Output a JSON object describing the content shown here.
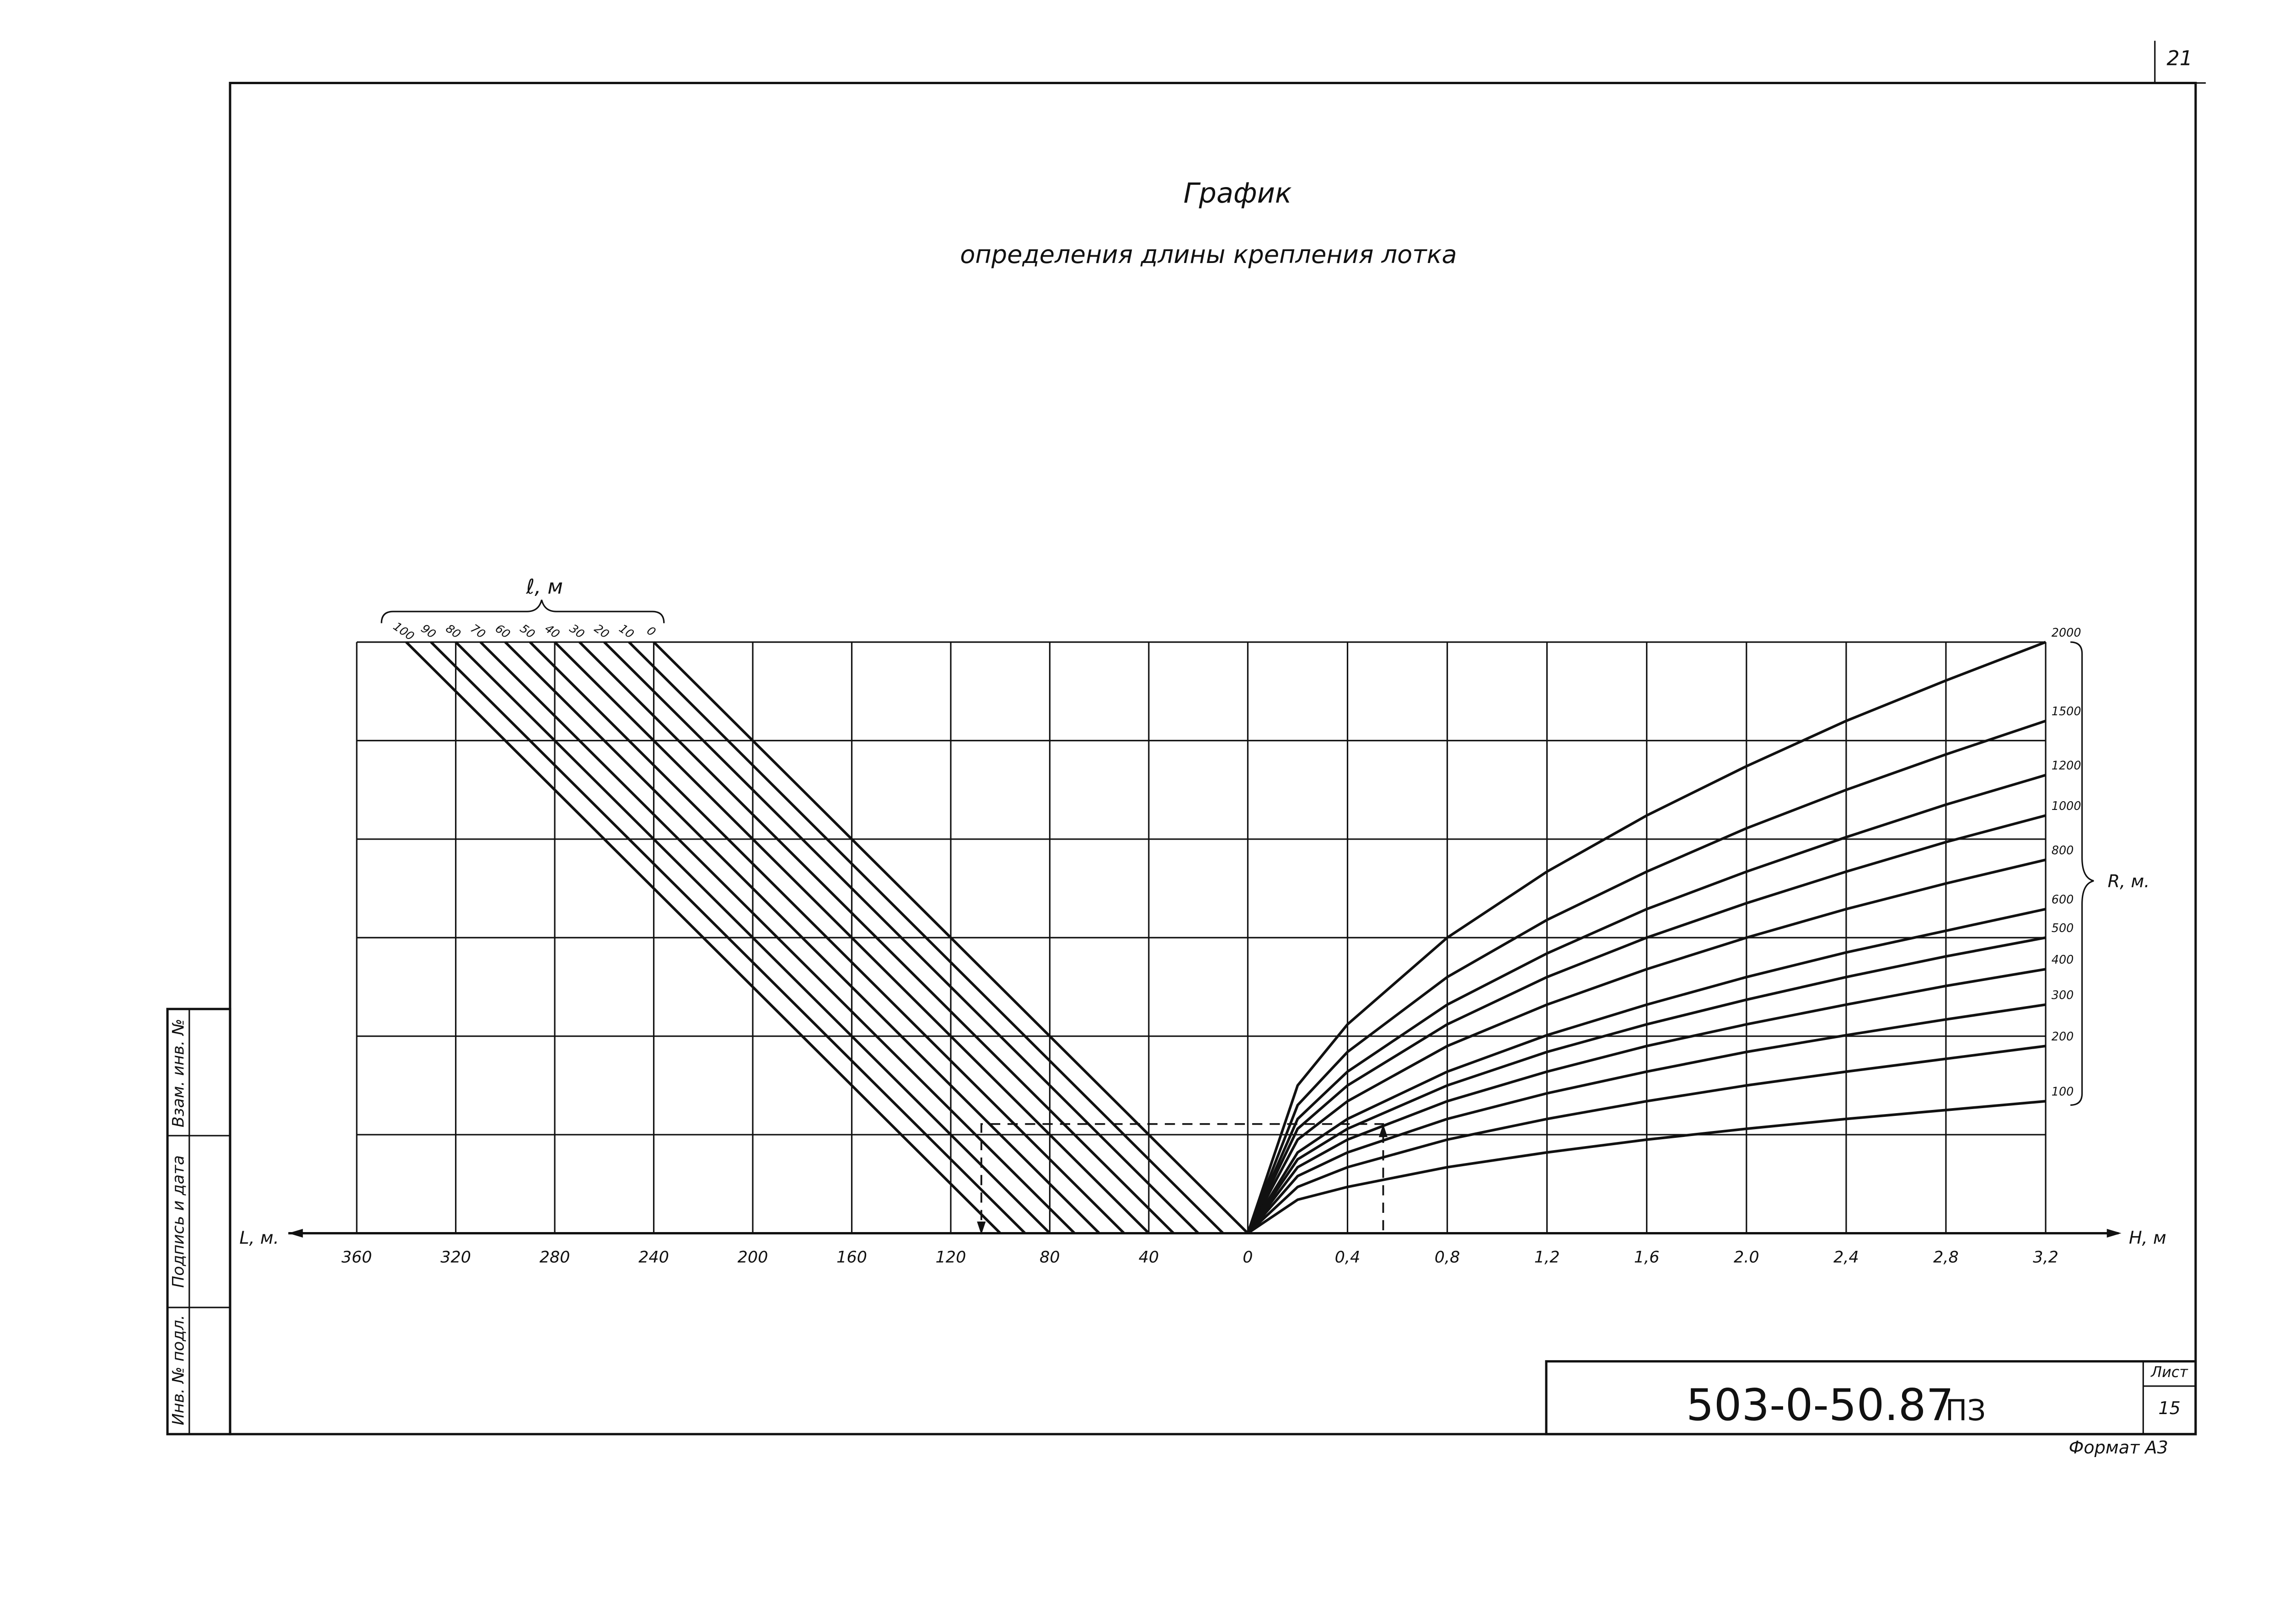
{
  "page_number": "21",
  "header": {
    "title": "График",
    "subtitle": "определения длины крепления лотка"
  },
  "chart_data": [
    {
      "type": "line",
      "x_label": "L, м.",
      "legend_title": "ℓ, м",
      "color": "#111",
      "xlim": [
        360,
        0
      ],
      "xticks": [
        360,
        320,
        280,
        240,
        200,
        160,
        120,
        80,
        40
      ],
      "ylim": [
        0,
        6
      ],
      "yticks": [
        0,
        1,
        2,
        3,
        4,
        5,
        6
      ],
      "grid": true,
      "series": [
        {
          "name": "100",
          "x": [
            100,
            340
          ],
          "values": [
            0,
            6
          ]
        },
        {
          "name": "90",
          "x": [
            90,
            330
          ],
          "values": [
            0,
            6
          ]
        },
        {
          "name": "80",
          "x": [
            80,
            320
          ],
          "values": [
            0,
            6
          ]
        },
        {
          "name": "70",
          "x": [
            70,
            310
          ],
          "values": [
            0,
            6
          ]
        },
        {
          "name": "60",
          "x": [
            60,
            300
          ],
          "values": [
            0,
            6
          ]
        },
        {
          "name": "50",
          "x": [
            50,
            290
          ],
          "values": [
            0,
            6
          ]
        },
        {
          "name": "40",
          "x": [
            40,
            280
          ],
          "values": [
            0,
            6
          ]
        },
        {
          "name": "30",
          "x": [
            30,
            270
          ],
          "values": [
            0,
            6
          ]
        },
        {
          "name": "20",
          "x": [
            20,
            260
          ],
          "values": [
            0,
            6
          ]
        },
        {
          "name": "10",
          "x": [
            10,
            250
          ],
          "values": [
            0,
            6
          ]
        },
        {
          "name": "0",
          "x": [
            0,
            240
          ],
          "values": [
            0,
            6
          ]
        }
      ]
    },
    {
      "type": "line",
      "x_label": "H, м",
      "legend_title": "R, м.",
      "color": "#111",
      "xlim": [
        0,
        3.2
      ],
      "xticks": [
        0,
        {
          "value": 0.4,
          "label": "0,4"
        },
        {
          "value": 0.8,
          "label": "0,8"
        },
        {
          "value": 1.2,
          "label": "1,2"
        },
        {
          "value": 1.6,
          "label": "1,6"
        },
        {
          "value": 2,
          "label": "2.0"
        },
        {
          "value": 2.4,
          "label": "2,4"
        },
        {
          "value": 2.8,
          "label": "2,8"
        },
        {
          "value": 3.2,
          "label": "3,2"
        }
      ],
      "ylim": [
        0,
        6
      ],
      "yticks": [
        0,
        1,
        2,
        3,
        4,
        5,
        6
      ],
      "grid": true,
      "x": [
        0,
        0.2,
        0.4,
        0.8,
        1.2,
        1.6,
        2.0,
        2.4,
        2.8,
        3.2
      ],
      "series": [
        {
          "name": "100",
          "values": [
            0,
            0.34,
            0.47,
            0.67,
            0.82,
            0.95,
            1.06,
            1.16,
            1.25,
            1.34
          ]
        },
        {
          "name": "200",
          "values": [
            0,
            0.47,
            0.67,
            0.95,
            1.16,
            1.34,
            1.5,
            1.64,
            1.77,
            1.9
          ]
        },
        {
          "name": "300",
          "values": [
            0,
            0.58,
            0.82,
            1.16,
            1.42,
            1.64,
            1.84,
            2.01,
            2.17,
            2.32
          ]
        },
        {
          "name": "400",
          "values": [
            0,
            0.67,
            0.95,
            1.34,
            1.64,
            1.9,
            2.12,
            2.32,
            2.51,
            2.68
          ]
        },
        {
          "name": "500",
          "values": [
            0,
            0.75,
            1.06,
            1.5,
            1.84,
            2.12,
            2.37,
            2.6,
            2.81,
            3.0
          ]
        },
        {
          "name": "600",
          "values": [
            0,
            0.82,
            1.16,
            1.64,
            2.01,
            2.32,
            2.6,
            2.85,
            3.07,
            3.29
          ]
        },
        {
          "name": "800",
          "values": [
            0,
            0.95,
            1.34,
            1.9,
            2.32,
            2.68,
            3.0,
            3.29,
            3.55,
            3.79
          ]
        },
        {
          "name": "1000",
          "values": [
            0,
            1.06,
            1.5,
            2.12,
            2.6,
            3.0,
            3.35,
            3.67,
            3.97,
            4.24
          ]
        },
        {
          "name": "1200",
          "values": [
            0,
            1.16,
            1.64,
            2.32,
            2.84,
            3.29,
            3.67,
            4.02,
            4.35,
            4.65
          ]
        },
        {
          "name": "1500",
          "values": [
            0,
            1.3,
            1.84,
            2.6,
            3.18,
            3.67,
            4.11,
            4.5,
            4.86,
            5.2
          ]
        },
        {
          "name": "2000",
          "values": [
            0,
            1.5,
            2.12,
            3.0,
            3.67,
            4.24,
            4.74,
            5.2,
            5.61,
            6.0
          ]
        }
      ]
    }
  ],
  "stamp": {
    "designation": "503-0-50.87",
    "doc_code": "ПЗ",
    "sheet_label": "Лист",
    "sheet": "15",
    "format": "Формат А3"
  },
  "side_stamp": {
    "inventory": "Инв. № подл.",
    "signature": "Подпись и дата",
    "replacement": "Взам. инв. №"
  }
}
